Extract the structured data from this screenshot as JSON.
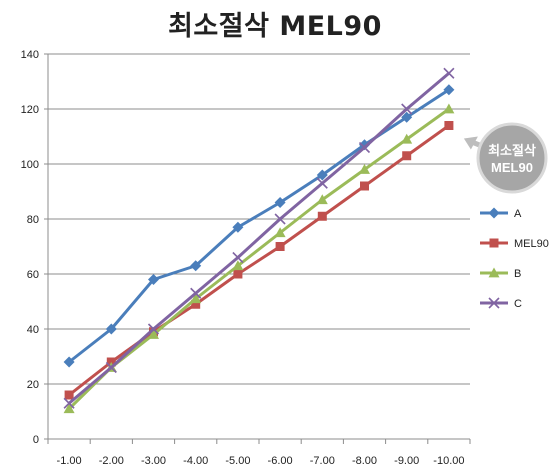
{
  "chart_data": {
    "type": "line",
    "title": "최소절삭 MEL90",
    "categories": [
      "-1.00",
      "-2.00",
      "-3.00",
      "-4.00",
      "-5.00",
      "-6.00",
      "-7.00",
      "-8.00",
      "-9.00",
      "-10.00"
    ],
    "ylim": [
      0,
      140
    ],
    "yticks": [
      0,
      20,
      40,
      60,
      80,
      100,
      120,
      140
    ],
    "grid": true,
    "legend_position": "right",
    "series": [
      {
        "name": "A",
        "color": "#4a7ebb",
        "marker": "diamond",
        "values": [
          28,
          40,
          58,
          63,
          77,
          86,
          96,
          107,
          117,
          127
        ]
      },
      {
        "name": "MEL90",
        "color": "#c0504d",
        "marker": "square",
        "values": [
          16,
          28,
          39,
          49,
          60,
          70,
          81,
          92,
          103,
          114
        ]
      },
      {
        "name": "B",
        "color": "#9bbb59",
        "marker": "triangle",
        "values": [
          11,
          26,
          38,
          51,
          63,
          75,
          87,
          98,
          109,
          120
        ]
      },
      {
        "name": "C",
        "color": "#8064a2",
        "marker": "x",
        "values": [
          13,
          26,
          40,
          53,
          66,
          80,
          93,
          106,
          120,
          133
        ]
      }
    ],
    "annotation": {
      "lines": [
        "최소절삭",
        "MEL90"
      ],
      "target_series": "MEL90"
    }
  }
}
